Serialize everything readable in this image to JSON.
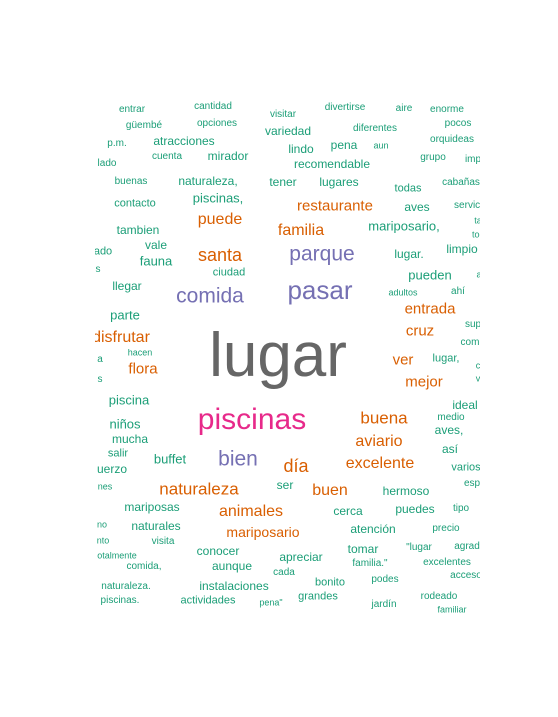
{
  "colors": {
    "teal": "#1b9e77",
    "orange": "#d95f02",
    "purple": "#7570b3",
    "pink": "#e7298a",
    "gray": "#666666"
  },
  "words": {
    "lugar": "lugar",
    "piscinas": "piscinas",
    "pasar": "pasar",
    "comida": "comida",
    "parque": "parque",
    "bien": "bien",
    "santa": "santa",
    "familia": "familia",
    "puede": "puede",
    "restaurante": "restaurante",
    "buena": "buena",
    "aviario": "aviario",
    "dia": "día",
    "excelente": "excelente",
    "naturaleza": "naturaleza",
    "buen": "buen",
    "animales": "animales",
    "mariposario": "mariposario",
    "disfrutar": "disfrutar",
    "flora": "flora",
    "cruz": "cruz",
    "entrada": "entrada",
    "ver": "ver",
    "mejor": "mejor",
    "entrar": "entrar",
    "cantidad": "cantidad",
    "visitar": "visitar",
    "divertirse": "divertirse",
    "aire": "aire",
    "enorme": "enorme",
    "guembe": "güembé",
    "opciones": "opciones",
    "variedad": "variedad",
    "diferentes": "diferentes",
    "pocos": "pocos",
    "pm": "p.m.",
    "atracciones": "atracciones",
    "lindo": "lindo",
    "pena": "pena",
    "aun": "aun",
    "orquideas": "orquideas",
    "lado": "lado",
    "cuenta": "cuenta",
    "mirador": "mirador",
    "recomendable": "recomendable",
    "grupo": "grupo",
    "imp": "imp",
    "buenas": "buenas",
    "naturaleza_comma": "naturaleza,",
    "tener": "tener",
    "lugares": "lugares",
    "todas": "todas",
    "cabanas": "cabañas",
    "piscinas_comma": "piscinas,",
    "contacto": "contacto",
    "aves": "aves",
    "servicio": "servicio",
    "tambien": "tambien",
    "mariposario_comma": "mariposario,",
    "ta": "ta",
    "toc": "toc",
    "ado": "ado",
    "vale": "vale",
    "limpio": "limpio",
    "fauna": "fauna",
    "lugar_dot": "lugar.",
    "s1": "s",
    "ciudad": "ciudad",
    "pueden": "pueden",
    "a1": "a",
    "llegar": "llegar",
    "adultos": "adultos",
    "ahi": "ahí",
    "parte": "parte",
    "sup": "sup",
    "com": "com",
    "hacen": "hacen",
    "a2": "a",
    "lugar_comma": "lugar,",
    "c1": "c",
    "s2": "s",
    "v1": "v",
    "piscina": "piscina",
    "ideal": "ideal",
    "medio": "medio",
    "ninos": "niños",
    "aves_comma": "aves,",
    "mucha": "mucha",
    "asi": "así",
    "salir": "salir",
    "buffet": "buffet",
    "uerzo": "uerzo",
    "varios": "varios",
    "nes": "nes",
    "ser": "ser",
    "hermoso": "hermoso",
    "esp": "esp",
    "mariposas": "mariposas",
    "cerca": "cerca",
    "puedes": "puedes",
    "tipo": "tipo",
    "no": "no",
    "naturales": "naturales",
    "atencion": "atención",
    "precio": "precio",
    "nto": "nto",
    "visita": "visita",
    "conocer": "conocer",
    "tomar": "tomar",
    "lugar_quote": "\"lugar",
    "agrad": "agrad",
    "otalmente": "otalmente",
    "apreciar": "apreciar",
    "comida_comma": "comida,",
    "aunque": "aunque",
    "familia_quote": "familia.\"",
    "excelentes": "excelentes",
    "cada": "cada",
    "acceso": "acceso",
    "naturaleza_dot": "naturaleza.",
    "instalaciones": "instalaciones",
    "bonito": "bonito",
    "podes": "podes",
    "rodeado": "rodeado",
    "piscinas_dot": "piscinas.",
    "actividades": "actividades",
    "pena_quote": "pena\"",
    "grandes": "grandes",
    "jardin": "jardín",
    "familiar": "familiar"
  }
}
